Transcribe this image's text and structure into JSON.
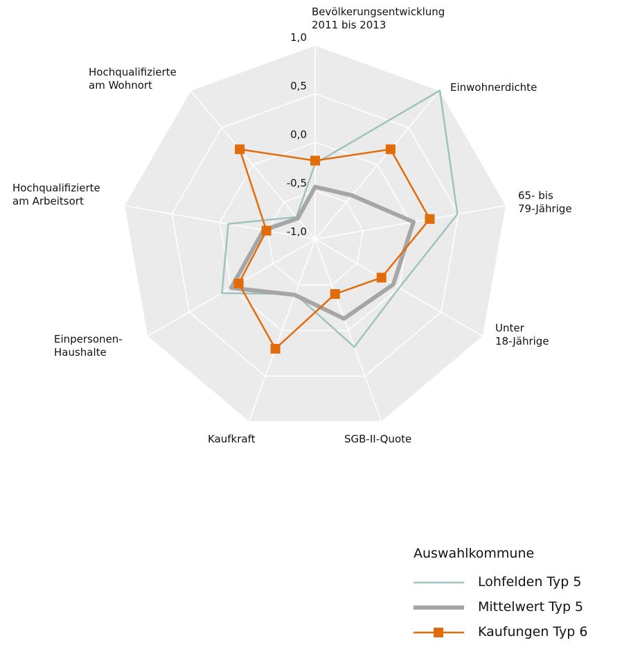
{
  "chart_data": {
    "type": "radar",
    "categories": [
      "Bevölkerungsentwicklung\n2011 bis 2013",
      "Einwohnerdichte",
      "65- bis\n79-Jährige",
      "Unter\n18-Jährige",
      "SGB-II-Quote",
      "Kaufkraft",
      "Einpersonen-\nHaushalte",
      "Hochqualifizierte\nam Arbeitsort",
      "Hochqualifizierte\nam Wohnort"
    ],
    "ylim": [
      -1,
      1
    ],
    "yticks": [
      {
        "value": -1,
        "label": "-1,0"
      },
      {
        "value": -0.5,
        "label": "-0,5"
      },
      {
        "value": 0,
        "label": "0,0"
      },
      {
        "value": 0.5,
        "label": "0,5"
      },
      {
        "value": 1,
        "label": "1,0"
      }
    ],
    "legend_title": "Auswahlkommune",
    "series": [
      {
        "name": "Lohfelden Typ 5",
        "color": "#9fc2bd",
        "values": [
          -0.22,
          1.0,
          0.49,
          0.0,
          0.18,
          -0.4,
          0.11,
          -0.09,
          -0.7
        ]
      },
      {
        "name": "Mittelwert Typ 5",
        "color": "#a6a6a6",
        "values": [
          -0.46,
          -0.41,
          0.03,
          -0.07,
          -0.13,
          -0.39,
          0.0,
          -0.46,
          -0.72
        ]
      },
      {
        "name": "Kaufungen Typ 6",
        "color": "#e36c0a",
        "marker": "square",
        "values": [
          -0.19,
          0.21,
          0.2,
          -0.21,
          -0.4,
          0.2,
          -0.09,
          -0.49,
          0.21
        ]
      }
    ]
  }
}
